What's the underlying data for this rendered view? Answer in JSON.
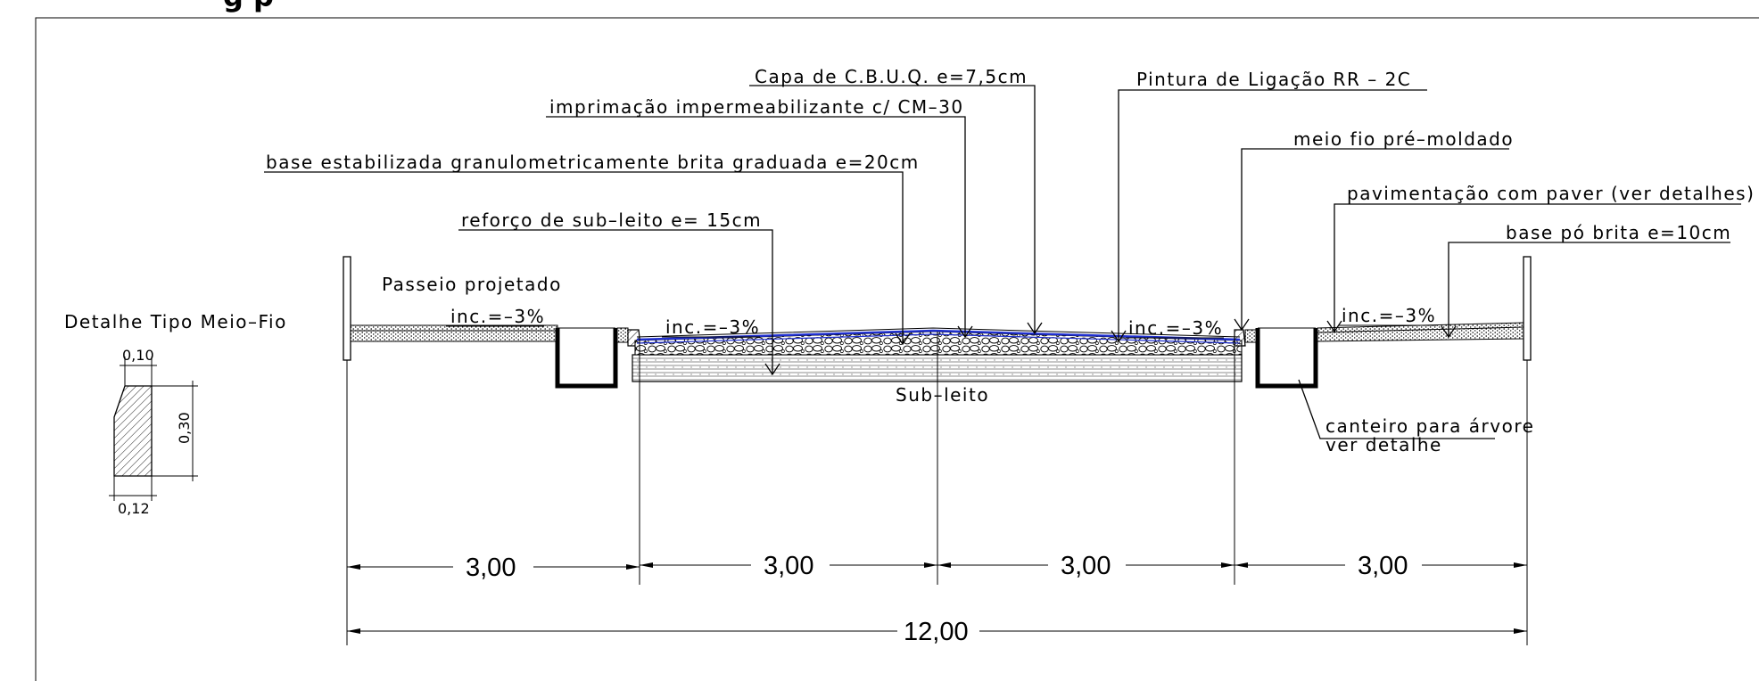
{
  "title": "g    p",
  "labels": {
    "capa": "Capa de C.B.U.Q.  e=7,5cm",
    "pintura": "Pintura de Ligação RR – 2C",
    "imprimacao": "imprimação impermeabilizante c/ CM–30",
    "meio_fio": "meio fio pré–moldado",
    "base": "base estabilizada granulometricamente brita graduada  e=20cm",
    "pavimentacao": "pavimentação com paver (ver detalhes)",
    "reforco": "reforço de sub–leito e= 15cm",
    "base_po": "base pó brita e=10cm",
    "passeio": "Passeio projetado",
    "inc_1": "inc.=–3%",
    "inc_2": "inc.=–3%",
    "inc_3": "inc.=–3%",
    "inc_4": "inc.=–3%",
    "subleito": "Sub–leito",
    "canteiro_1": "canteiro para árvore",
    "canteiro_2": "ver detalhe"
  },
  "detail": {
    "title": "Detalhe Tipo Meio–Fio",
    "top_width": "0,10",
    "height": "0,30",
    "bottom_width": "0,12"
  },
  "dimensions": {
    "d1": "3,00",
    "d2": "3,00",
    "d3": "3,00",
    "d4": "3,00",
    "total": "12,00"
  }
}
